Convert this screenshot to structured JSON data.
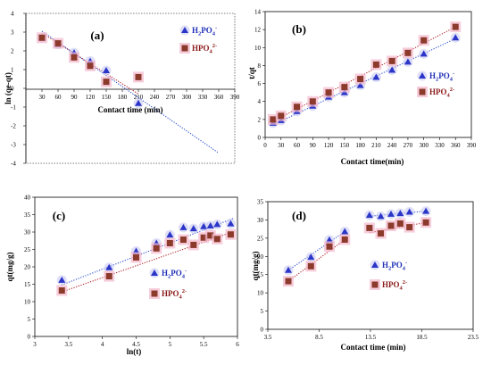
{
  "colors": {
    "h2po4": "#2b35c8",
    "hpo4": "#8b3a2b",
    "hpo4_glow": "#f3b8cc",
    "h2po4_glow": "#c9ccf2",
    "line_h2po4": "#2d4fd0",
    "line_hpo4": "#b0202a"
  },
  "chart_data": [
    {
      "id": "a",
      "type": "scatter",
      "panel_label": "(a)",
      "xlabel": "Contact time (min)",
      "ylabel": "ln (qe-qt)",
      "xlim": [
        0,
        390
      ],
      "ylim": [
        -4,
        4
      ],
      "xticks": [
        "30",
        "60",
        "90",
        "120",
        "150",
        "180",
        "210",
        "240",
        "270",
        "300",
        "330",
        "360",
        "390"
      ],
      "yticks": [
        "-4",
        "-3",
        "-2",
        "-1",
        "0",
        "1",
        "2",
        "3",
        "4"
      ],
      "legend": [
        "H2PO4-",
        "HPO42-"
      ],
      "series": [
        {
          "name": "H2PO4-",
          "marker": "triangle",
          "x": [
            30,
            60,
            90,
            120,
            150,
            210
          ],
          "y": [
            2.7,
            2.35,
            1.9,
            1.45,
            0.95,
            -0.8
          ]
        },
        {
          "name": "HPO42-",
          "marker": "square",
          "x": [
            30,
            60,
            90,
            120,
            150,
            210
          ],
          "y": [
            2.7,
            2.4,
            1.65,
            1.2,
            0.35,
            0.6
          ]
        }
      ],
      "fits": [
        {
          "series": "H2PO4-",
          "x": [
            30,
            360
          ],
          "y": [
            3.05,
            -3.45
          ]
        },
        {
          "series": "HPO42-",
          "x": [
            30,
            210
          ],
          "y": [
            2.95,
            -0.3
          ]
        }
      ]
    },
    {
      "id": "b",
      "type": "scatter",
      "panel_label": "(b)",
      "xlabel": "Contact time(min)",
      "ylabel": "t/qt",
      "xlim": [
        0,
        390
      ],
      "ylim": [
        0,
        14
      ],
      "xticks": [
        "0",
        "30",
        "60",
        "90",
        "120",
        "150",
        "180",
        "210",
        "240",
        "270",
        "300",
        "330",
        "360",
        "390"
      ],
      "yticks": [
        "0",
        "2",
        "4",
        "6",
        "8",
        "10",
        "12",
        "14"
      ],
      "legend": [
        "H2PO4-",
        "HPO42-"
      ],
      "series": [
        {
          "name": "H2PO4-",
          "marker": "triangle",
          "x": [
            15,
            30,
            60,
            90,
            120,
            150,
            180,
            210,
            240,
            270,
            300,
            360
          ],
          "y": [
            1.6,
            1.9,
            2.9,
            3.5,
            4.5,
            5.0,
            5.8,
            6.7,
            7.5,
            8.4,
            9.3,
            11.1
          ]
        },
        {
          "name": "HPO42-",
          "marker": "square",
          "x": [
            15,
            30,
            60,
            90,
            120,
            150,
            180,
            210,
            240,
            270,
            300,
            360
          ],
          "y": [
            2.0,
            2.4,
            3.4,
            4.0,
            5.0,
            5.6,
            6.5,
            8.1,
            8.5,
            9.4,
            10.8,
            12.3
          ]
        }
      ],
      "fits": [
        {
          "series": "H2PO4-",
          "x": [
            15,
            360
          ],
          "y": [
            1.4,
            11.0
          ]
        },
        {
          "series": "HPO42-",
          "x": [
            15,
            360
          ],
          "y": [
            1.8,
            12.3
          ]
        }
      ]
    },
    {
      "id": "c",
      "type": "scatter",
      "panel_label": "(c)",
      "xlabel": "ln(t)",
      "ylabel": "qt(mg/g)",
      "xlim": [
        3,
        6
      ],
      "ylim": [
        0,
        40
      ],
      "xticks": [
        "3",
        "3.5",
        "4",
        "4.5",
        "5",
        "5.5",
        "6"
      ],
      "yticks": [
        "0",
        "5",
        "10",
        "15",
        "20",
        "25",
        "30",
        "35",
        "40"
      ],
      "legend": [
        "H2PO4-",
        "HPO42-"
      ],
      "series": [
        {
          "name": "H2PO4-",
          "marker": "triangle",
          "x": [
            3.4,
            4.1,
            4.5,
            4.8,
            5.0,
            5.2,
            5.35,
            5.5,
            5.6,
            5.7,
            5.9
          ],
          "y": [
            16.2,
            19.8,
            24.5,
            26.8,
            29.2,
            31.3,
            31.0,
            31.6,
            31.8,
            32.2,
            32.4
          ]
        },
        {
          "name": "HPO42-",
          "marker": "square",
          "x": [
            3.4,
            4.1,
            4.5,
            4.8,
            5.0,
            5.2,
            5.35,
            5.5,
            5.6,
            5.7,
            5.9
          ],
          "y": [
            13.2,
            17.3,
            22.7,
            25.3,
            26.8,
            27.8,
            26.3,
            28.4,
            29.0,
            28.0,
            29.3
          ]
        }
      ],
      "fits": [
        {
          "series": "H2PO4-",
          "x": [
            3.4,
            5.95
          ],
          "y": [
            14.8,
            34.0
          ]
        },
        {
          "series": "HPO42-",
          "x": [
            3.4,
            5.95
          ],
          "y": [
            12.8,
            30.2
          ]
        }
      ]
    },
    {
      "id": "d",
      "type": "scatter",
      "panel_label": "(d)",
      "xlabel": "Contact time (min)",
      "ylabel": "qt(mg/g)",
      "xlim": [
        3.5,
        23.5
      ],
      "ylim": [
        0,
        35
      ],
      "xticks": [
        "3.5",
        "8.5",
        "13.5",
        "18.5",
        "23.5"
      ],
      "yticks": [
        "0",
        "5",
        "10",
        "15",
        "20",
        "25",
        "30",
        "35"
      ],
      "legend": [
        "H2PO4-",
        "HPO42-"
      ],
      "series": [
        {
          "name": "H2PO4-",
          "marker": "triangle",
          "x": [
            5.5,
            7.7,
            9.5,
            11.0,
            13.4,
            14.5,
            15.5,
            16.4,
            17.3,
            18.9
          ],
          "y": [
            16.2,
            19.8,
            24.5,
            26.8,
            31.3,
            31.0,
            31.6,
            31.8,
            32.2,
            32.4
          ]
        },
        {
          "name": "HPO42-",
          "marker": "square",
          "x": [
            5.5,
            7.7,
            9.5,
            11.0,
            13.4,
            14.5,
            15.5,
            16.4,
            17.3,
            18.9
          ],
          "y": [
            13.2,
            17.3,
            22.7,
            24.6,
            27.8,
            26.3,
            28.4,
            29.0,
            28.0,
            29.3
          ]
        }
      ],
      "fits": [
        {
          "series": "H2PO4-",
          "x": [
            5.5,
            11.0
          ],
          "y": [
            16.2,
            26.8
          ]
        },
        {
          "series": "HPO42-",
          "x": [
            5.5,
            11.0
          ],
          "y": [
            13.2,
            24.6
          ]
        },
        {
          "series": "H2PO4-",
          "x": [
            13.4,
            18.9
          ],
          "y": [
            31.0,
            32.4
          ]
        },
        {
          "series": "HPO42-",
          "x": [
            13.4,
            18.9
          ],
          "y": [
            26.5,
            29.3
          ]
        }
      ]
    }
  ]
}
